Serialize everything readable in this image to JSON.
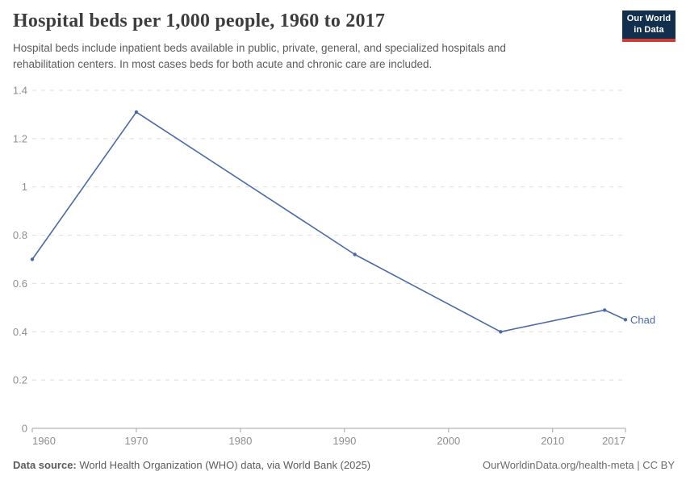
{
  "header": {
    "title": "Hospital beds per 1,000 people, 1960 to 2017",
    "subtitle": "Hospital beds include inpatient beds available in public, private, general, and specialized hospitals and rehabilitation centers. In most cases beds for both acute and chronic care are included.",
    "logo": {
      "line1": "Our World",
      "line2": "in Data",
      "bg_color": "#12304d",
      "accent_color": "#cd3d34"
    }
  },
  "chart_data": {
    "type": "line",
    "title": "Hospital beds per 1,000 people, 1960 to 2017",
    "xlabel": "",
    "ylabel": "",
    "xlim": [
      1960,
      2017
    ],
    "ylim": [
      0,
      1.4
    ],
    "x_ticks": [
      1960,
      1970,
      1980,
      1990,
      2000,
      2010,
      2017
    ],
    "y_ticks": [
      0,
      0.2,
      0.4,
      0.6,
      0.8,
      1,
      1.2,
      1.4
    ],
    "grid": "horizontal-dashed",
    "legend_position": "end-of-line-label",
    "series": [
      {
        "name": "Chad",
        "color": "#4a69a8",
        "points": [
          {
            "x": 1960,
            "y": 0.7
          },
          {
            "x": 1970,
            "y": 1.31
          },
          {
            "x": 1991,
            "y": 0.72
          },
          {
            "x": 2005,
            "y": 0.4
          },
          {
            "x": 2015,
            "y": 0.49
          },
          {
            "x": 2017,
            "y": 0.45
          }
        ]
      }
    ]
  },
  "footer": {
    "source_label": "Data source:",
    "source_text": " World Health Organization (WHO) data, via World Bank (2025)",
    "credit": "OurWorldinData.org/health-meta | CC BY"
  }
}
